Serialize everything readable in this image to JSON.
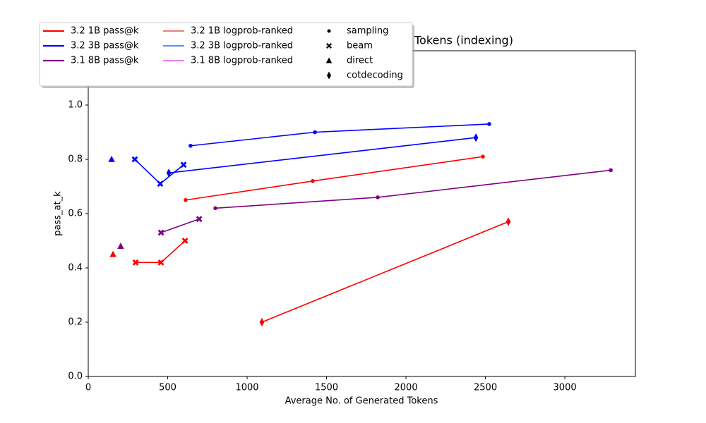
{
  "chart_data": {
    "type": "line",
    "title": "Tokens (indexing)",
    "xlabel": "Average No. of Generated Tokens",
    "ylabel": "pass_at_k",
    "xlim": [
      0,
      3444
    ],
    "ylim": [
      0,
      1.2
    ],
    "xticks": [
      0,
      500,
      1000,
      1500,
      2000,
      2500,
      3000
    ],
    "yticks": [
      {
        "value": 0,
        "label": "0.0"
      },
      0.2,
      0.4,
      0.6,
      0.8,
      {
        "value": 1,
        "label": "1.0"
      }
    ],
    "markers": [
      "sampling",
      "beam",
      "direct",
      "cotdecoding"
    ],
    "series": [
      {
        "name": "3.2 1B pass@k",
        "color": "#ff0000",
        "lines": [
          {
            "marker": 0,
            "x": [
              613,
              1413,
              2484
            ],
            "values": [
              0.65,
              0.72,
              0.81
            ]
          },
          {
            "marker": 1,
            "x": [
              298,
              458,
              609
            ],
            "values": [
              0.42,
              0.42,
              0.5
            ]
          },
          {
            "marker": 2,
            "x": [
              156
            ],
            "values": [
              0.45
            ]
          },
          {
            "marker": 3,
            "x": [
              1093,
              2644
            ],
            "values": [
              0.2,
              0.57
            ]
          }
        ]
      },
      {
        "name": "3.2 3B pass@k",
        "color": "#0000ff",
        "lines": [
          {
            "marker": 0,
            "x": [
              644,
              1427,
              2524
            ],
            "values": [
              0.85,
              0.9,
              0.93
            ]
          },
          {
            "marker": 1,
            "x": [
              293,
              453,
              600
            ],
            "values": [
              0.8,
              0.71,
              0.78
            ]
          },
          {
            "marker": 2,
            "x": [
              147
            ],
            "values": [
              0.8
            ]
          },
          {
            "marker": 3,
            "x": [
              507,
              2440
            ],
            "values": [
              0.75,
              0.88
            ]
          }
        ]
      },
      {
        "name": "3.1 8B pass@k",
        "color": "#800080",
        "lines": [
          {
            "marker": 0,
            "x": [
              800,
              1822,
              3289
            ],
            "values": [
              0.62,
              0.66,
              0.76
            ]
          },
          {
            "marker": 1,
            "x": [
              458,
              698
            ],
            "values": [
              0.53,
              0.58
            ]
          },
          {
            "marker": 2,
            "x": [
              204
            ],
            "values": [
              0.48
            ]
          }
        ]
      },
      {
        "name": "3.2 1B logprob-ranked",
        "color": "#f08080",
        "lines": []
      },
      {
        "name": "3.2 3B logprob-ranked",
        "color": "#6495ed",
        "lines": []
      },
      {
        "name": "3.1 8B logprob-ranked",
        "color": "#ee82ee",
        "lines": []
      }
    ]
  }
}
